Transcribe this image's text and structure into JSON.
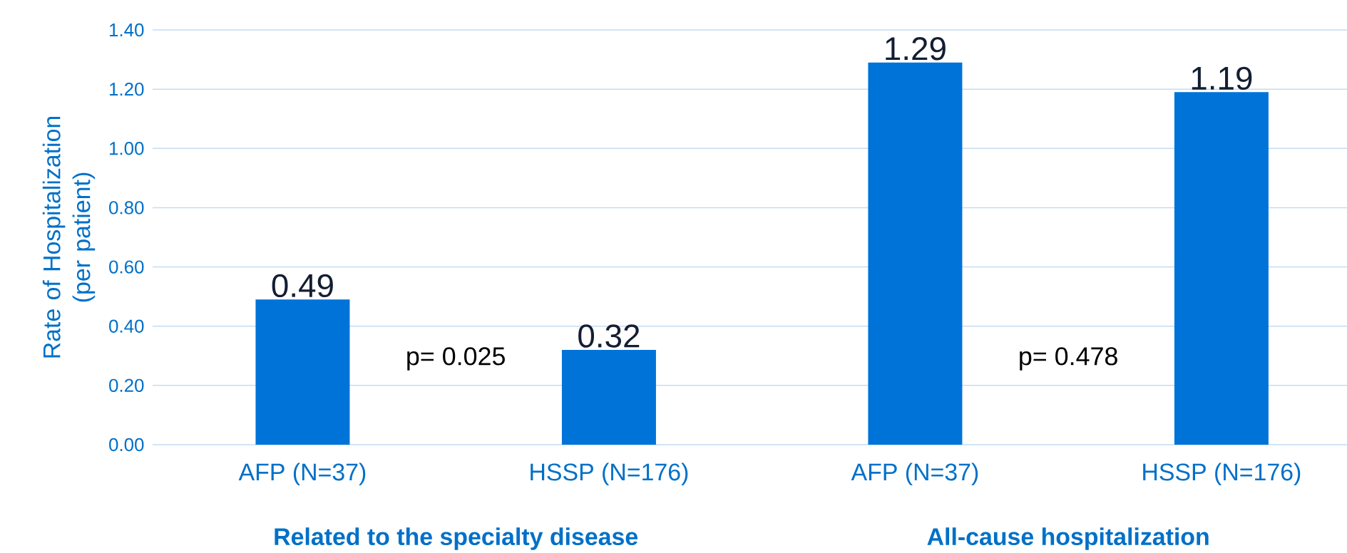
{
  "chart_data": {
    "type": "bar",
    "ylabel": "Rate of Hospitalization (per patient)",
    "categories": [
      "AFP (N=37)",
      "HSSP (N=176)",
      "AFP (N=37)",
      "HSSP (N=176)"
    ],
    "values": [
      0.49,
      0.32,
      1.29,
      1.19
    ],
    "color": "#0073d9",
    "ylim": [
      0,
      1.4
    ],
    "yticks": [
      {
        "value": 0,
        "label": "0.00"
      },
      {
        "value": 0.2,
        "label": "0.20"
      },
      {
        "value": 0.4,
        "label": "0.40"
      },
      {
        "value": 0.6,
        "label": "0.60"
      },
      {
        "value": 0.8,
        "label": "0.80"
      },
      {
        "value": 1.0,
        "label": "1.00"
      },
      {
        "value": 1.2,
        "label": "1.20"
      },
      {
        "value": 1.4,
        "label": "1.40"
      }
    ],
    "grid": "y",
    "data_labels": true,
    "annotations": [
      "p= 0.025",
      "p= 0.478",
      "Related to the specialty disease",
      "All-cause hospitalization"
    ]
  }
}
